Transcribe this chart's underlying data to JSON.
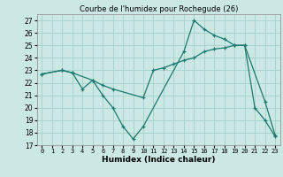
{
  "title": "Courbe de l'humidex pour Rochegude (26)",
  "xlabel": "Humidex (Indice chaleur)",
  "bg_color": "#cce8e4",
  "line_color": "#1a7a6e",
  "grid_color": "#aad4ce",
  "xlim": [
    -0.5,
    23.5
  ],
  "ylim": [
    17,
    27.5
  ],
  "yticks": [
    17,
    18,
    19,
    20,
    21,
    22,
    23,
    24,
    25,
    26,
    27
  ],
  "xticks": [
    0,
    1,
    2,
    3,
    4,
    5,
    6,
    7,
    8,
    9,
    10,
    11,
    12,
    13,
    14,
    15,
    16,
    17,
    18,
    19,
    20,
    21,
    22,
    23
  ],
  "line1_x": [
    0,
    2,
    3,
    4,
    5,
    6,
    7,
    8,
    9,
    10,
    14,
    15,
    16,
    17,
    18,
    19,
    20,
    21,
    22,
    23
  ],
  "line1_y": [
    22.7,
    23.0,
    22.8,
    21.5,
    22.2,
    21.0,
    20.0,
    18.5,
    17.5,
    18.5,
    24.5,
    27.0,
    26.3,
    25.8,
    25.5,
    25.0,
    25.0,
    20.0,
    19.0,
    17.7
  ],
  "line2_x": [
    0,
    2,
    3,
    5,
    6,
    7,
    10,
    11,
    12,
    13,
    14,
    15,
    16,
    17,
    18,
    19,
    20,
    22,
    23
  ],
  "line2_y": [
    22.7,
    23.0,
    22.8,
    22.2,
    21.8,
    21.5,
    20.8,
    23.0,
    23.2,
    23.5,
    23.8,
    24.0,
    24.5,
    24.7,
    24.8,
    25.0,
    25.0,
    20.5,
    17.8
  ]
}
